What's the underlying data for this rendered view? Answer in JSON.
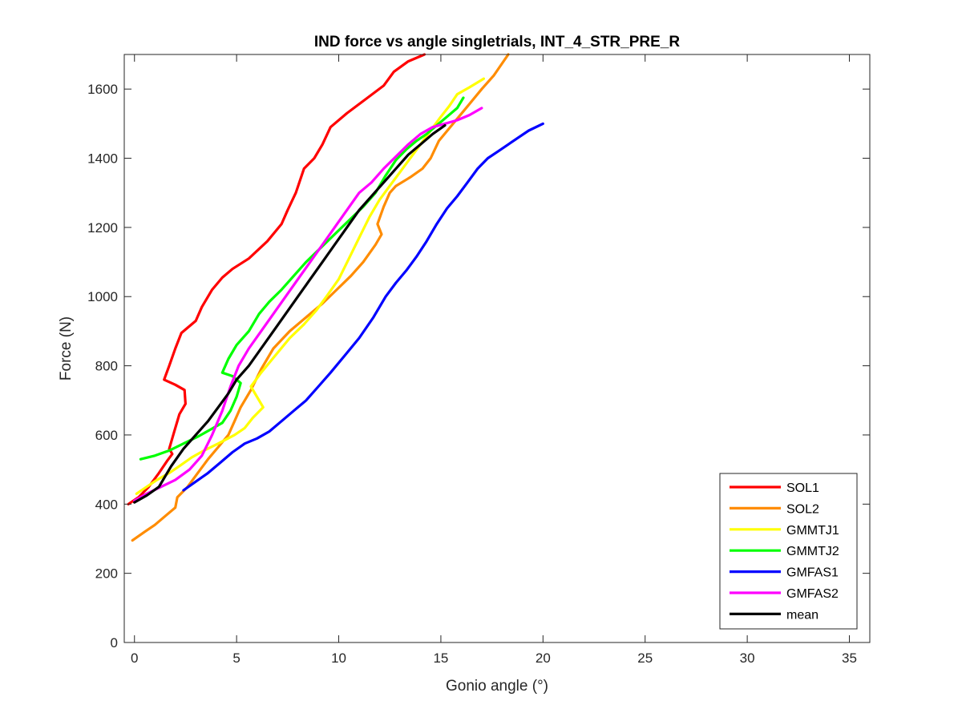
{
  "chart_data": {
    "type": "line",
    "title": "IND force vs angle singletrials, INT_4_STR_PRE_R",
    "xlabel": "Gonio angle (°)",
    "ylabel": "Force (N)",
    "xlim": [
      -0.5,
      36
    ],
    "ylim": [
      0,
      1700
    ],
    "xticks": [
      0,
      5,
      10,
      15,
      20,
      25,
      30,
      35
    ],
    "yticks": [
      0,
      200,
      400,
      600,
      800,
      1000,
      1200,
      1400,
      1600
    ],
    "grid": false,
    "legend_position": "bottom-right",
    "series": [
      {
        "name": "SOL1",
        "color": "#ff0000",
        "x": [
          -0.3,
          0.2,
          0.7,
          1.2,
          1.6,
          1.85,
          1.7,
          1.95,
          2.2,
          2.5,
          2.45,
          2.0,
          1.45,
          1.7,
          2.0,
          2.3,
          3.0,
          3.3,
          3.8,
          4.3,
          4.8,
          5.6,
          6.5,
          7.2,
          7.5,
          7.9,
          8.3,
          8.8,
          9.2,
          9.6,
          10.4,
          11.3,
          12.2,
          12.7,
          13.4,
          14.2
        ],
        "y": [
          400,
          420,
          450,
          490,
          525,
          545,
          560,
          610,
          660,
          690,
          730,
          745,
          760,
          800,
          850,
          895,
          930,
          970,
          1020,
          1055,
          1080,
          1110,
          1160,
          1210,
          1250,
          1300,
          1370,
          1400,
          1440,
          1490,
          1530,
          1570,
          1610,
          1650,
          1680,
          1700
        ]
      },
      {
        "name": "SOL2",
        "color": "#ff8c00",
        "x": [
          -0.1,
          0.5,
          1.0,
          1.6,
          2.0,
          2.1,
          2.6,
          3.1,
          3.6,
          4.1,
          4.6,
          4.9,
          5.2,
          5.7,
          6.2,
          6.8,
          7.6,
          8.4,
          9.2,
          9.9,
          10.6,
          11.2,
          11.8,
          12.1,
          11.9,
          12.2,
          12.5,
          12.8,
          13.5,
          14.1,
          14.5,
          14.9,
          15.6,
          16.3,
          17.0,
          17.6,
          18.3
        ],
        "y": [
          295,
          320,
          340,
          370,
          390,
          420,
          450,
          490,
          530,
          565,
          600,
          640,
          680,
          730,
          790,
          850,
          900,
          940,
          980,
          1020,
          1060,
          1100,
          1150,
          1180,
          1210,
          1260,
          1300,
          1320,
          1345,
          1370,
          1400,
          1450,
          1500,
          1550,
          1600,
          1640,
          1700
        ]
      },
      {
        "name": "GMMTJ1",
        "color": "#ffff00",
        "x": [
          0.1,
          0.6,
          1.1,
          1.7,
          2.2,
          2.8,
          3.4,
          4.1,
          4.9,
          5.4,
          5.8,
          6.3,
          6.1,
          5.7,
          6.2,
          6.9,
          7.6,
          8.3,
          8.9,
          9.4,
          10.0,
          10.5,
          11.0,
          11.5,
          12.0,
          12.5,
          13.0,
          13.5,
          14.0,
          14.5,
          15.0,
          15.4,
          15.8,
          16.4,
          17.1
        ],
        "y": [
          430,
          450,
          470,
          490,
          510,
          535,
          555,
          575,
          600,
          620,
          650,
          680,
          700,
          740,
          780,
          830,
          880,
          920,
          960,
          1000,
          1050,
          1110,
          1170,
          1230,
          1280,
          1320,
          1360,
          1400,
          1440,
          1480,
          1520,
          1550,
          1585,
          1605,
          1630
        ]
      },
      {
        "name": "GMMTJ2",
        "color": "#00ff00",
        "x": [
          0.3,
          1.0,
          1.7,
          2.4,
          3.1,
          3.7,
          4.3,
          4.7,
          5.0,
          5.2,
          4.8,
          4.3,
          4.6,
          5.0,
          5.6,
          6.1,
          6.6,
          7.2,
          7.8,
          8.4,
          9.1,
          9.8,
          10.5,
          11.2,
          11.8,
          12.3,
          12.8,
          13.3,
          13.8,
          14.3,
          14.8,
          15.3,
          15.8,
          16.1
        ],
        "y": [
          530,
          540,
          555,
          575,
          595,
          615,
          635,
          670,
          710,
          750,
          770,
          780,
          820,
          860,
          900,
          950,
          985,
          1020,
          1060,
          1100,
          1140,
          1180,
          1220,
          1260,
          1300,
          1350,
          1395,
          1425,
          1450,
          1470,
          1495,
          1520,
          1545,
          1575
        ]
      },
      {
        "name": "GMFAS1",
        "color": "#0000ff",
        "x": [
          2.4,
          3.0,
          3.6,
          4.2,
          4.8,
          5.4,
          6.0,
          6.6,
          7.2,
          7.8,
          8.4,
          9.0,
          9.6,
          10.3,
          11.0,
          11.7,
          12.3,
          12.8,
          13.3,
          13.8,
          14.3,
          14.8,
          15.3,
          15.8,
          16.3,
          16.8,
          17.3,
          17.8,
          18.3,
          18.8,
          19.3,
          20.0
        ],
        "y": [
          440,
          465,
          490,
          520,
          550,
          575,
          590,
          610,
          640,
          670,
          700,
          740,
          780,
          830,
          880,
          940,
          1000,
          1040,
          1075,
          1115,
          1160,
          1210,
          1255,
          1290,
          1330,
          1370,
          1400,
          1420,
          1440,
          1460,
          1480,
          1500
        ]
      },
      {
        "name": "GMFAS2",
        "color": "#ff00ff",
        "x": [
          0.0,
          0.6,
          1.3,
          2.0,
          2.7,
          3.3,
          3.8,
          4.3,
          4.7,
          5.1,
          5.6,
          6.2,
          6.8,
          7.4,
          8.0,
          8.6,
          9.2,
          9.8,
          10.4,
          11.0,
          11.6,
          12.2,
          12.8,
          13.4,
          14.0,
          14.6,
          15.2,
          15.8,
          16.4,
          17.0
        ],
        "y": [
          410,
          430,
          450,
          470,
          500,
          540,
          600,
          670,
          740,
          800,
          850,
          900,
          950,
          1000,
          1050,
          1100,
          1150,
          1200,
          1250,
          1300,
          1330,
          1370,
          1405,
          1440,
          1470,
          1490,
          1500,
          1510,
          1525,
          1545
        ]
      },
      {
        "name": "mean",
        "color": "#000000",
        "x": [
          0.0,
          0.6,
          1.2,
          1.8,
          2.4,
          3.0,
          3.6,
          4.1,
          4.6,
          5.0,
          5.6,
          6.2,
          6.8,
          7.4,
          8.0,
          8.6,
          9.2,
          9.8,
          10.4,
          11.0,
          11.6,
          12.2,
          12.8,
          13.4,
          14.0,
          14.6,
          15.2
        ],
        "y": [
          405,
          425,
          450,
          510,
          560,
          600,
          640,
          680,
          720,
          760,
          800,
          850,
          900,
          950,
          1000,
          1050,
          1100,
          1150,
          1200,
          1250,
          1290,
          1330,
          1370,
          1410,
          1440,
          1470,
          1495
        ]
      }
    ]
  }
}
